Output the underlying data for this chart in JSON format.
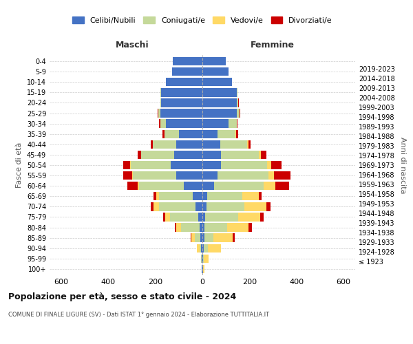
{
  "age_groups": [
    "100+",
    "95-99",
    "90-94",
    "85-89",
    "80-84",
    "75-79",
    "70-74",
    "65-69",
    "60-64",
    "55-59",
    "50-54",
    "45-49",
    "40-44",
    "35-39",
    "30-34",
    "25-29",
    "20-24",
    "15-19",
    "10-14",
    "5-9",
    "0-4"
  ],
  "birth_years": [
    "≤ 1923",
    "1924-1928",
    "1929-1933",
    "1934-1938",
    "1939-1943",
    "1944-1948",
    "1949-1953",
    "1954-1958",
    "1959-1963",
    "1964-1968",
    "1969-1973",
    "1974-1978",
    "1979-1983",
    "1984-1988",
    "1989-1993",
    "1994-1998",
    "1999-2003",
    "2004-2008",
    "2009-2013",
    "2014-2018",
    "2019-2023"
  ],
  "maschi": {
    "celibi": [
      2,
      3,
      5,
      8,
      12,
      18,
      30,
      40,
      80,
      110,
      135,
      120,
      110,
      100,
      155,
      180,
      175,
      175,
      155,
      130,
      125
    ],
    "coniugati": [
      1,
      2,
      8,
      25,
      80,
      120,
      155,
      145,
      190,
      185,
      170,
      140,
      100,
      60,
      25,
      8,
      5,
      3,
      0,
      0,
      0
    ],
    "vedovi": [
      0,
      2,
      10,
      15,
      18,
      20,
      22,
      10,
      5,
      3,
      3,
      2,
      1,
      1,
      0,
      0,
      0,
      0,
      0,
      0,
      0
    ],
    "divorziati": [
      0,
      0,
      0,
      2,
      8,
      10,
      12,
      12,
      45,
      40,
      30,
      12,
      10,
      8,
      5,
      2,
      0,
      0,
      0,
      0,
      0
    ]
  },
  "femmine": {
    "nubili": [
      2,
      3,
      5,
      8,
      10,
      12,
      18,
      20,
      50,
      65,
      80,
      80,
      75,
      65,
      110,
      145,
      145,
      145,
      125,
      110,
      100
    ],
    "coniugate": [
      1,
      3,
      18,
      40,
      95,
      140,
      160,
      150,
      210,
      215,
      195,
      160,
      115,
      75,
      35,
      12,
      8,
      4,
      0,
      0,
      0
    ],
    "vedove": [
      5,
      20,
      55,
      80,
      90,
      95,
      95,
      70,
      50,
      25,
      18,
      8,
      5,
      3,
      2,
      2,
      0,
      0,
      0,
      0,
      0
    ],
    "divorziate": [
      0,
      0,
      2,
      10,
      15,
      15,
      18,
      12,
      60,
      70,
      45,
      25,
      10,
      8,
      3,
      2,
      2,
      0,
      0,
      0,
      0
    ]
  },
  "colors": {
    "celibi": "#4472c4",
    "coniugati": "#c5d99a",
    "vedovi": "#ffd966",
    "divorziati": "#cc0000"
  },
  "legend_labels": [
    "Celibi/Nubili",
    "Coniugati/e",
    "Vedovi/e",
    "Divorziati/e"
  ],
  "title": "Popolazione per età, sesso e stato civile - 2024",
  "subtitle": "COMUNE DI FINALE LIGURE (SV) - Dati ISTAT 1° gennaio 2024 - Elaborazione TUTTITALIA.IT",
  "xlabel_left": "Maschi",
  "xlabel_right": "Femmine",
  "ylabel_left": "Fasce di età",
  "ylabel_right": "Anni di nascita",
  "xlim": 650,
  "bg_color": "#ffffff",
  "grid_color": "#cccccc"
}
